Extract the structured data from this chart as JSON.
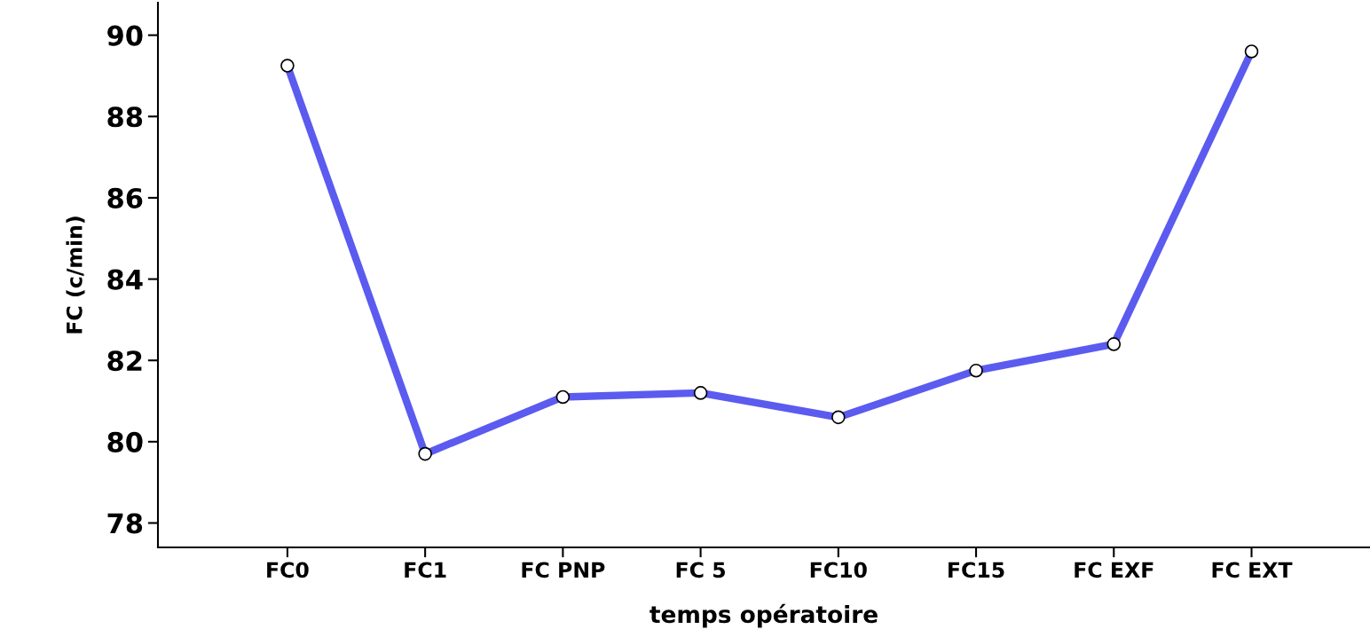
{
  "chart_data": {
    "type": "line",
    "xlabel": "temps opératoire",
    "ylabel": "FC (c/min)",
    "categories": [
      "FC0",
      "FC1",
      "FC PNP",
      "FC 5",
      "FC10",
      "FC15",
      "FC EXF",
      "FC EXT"
    ],
    "series": [
      {
        "color": "#5b5bf0",
        "values": [
          89.25,
          79.7,
          81.1,
          81.2,
          80.6,
          81.75,
          82.4,
          89.6
        ]
      }
    ],
    "ylim": [
      77.4,
      90.8
    ],
    "yticks": [
      78,
      80,
      82,
      84,
      86,
      88,
      90
    ],
    "grid": false,
    "legend": false,
    "marker": "circle",
    "line_style": "solid"
  }
}
